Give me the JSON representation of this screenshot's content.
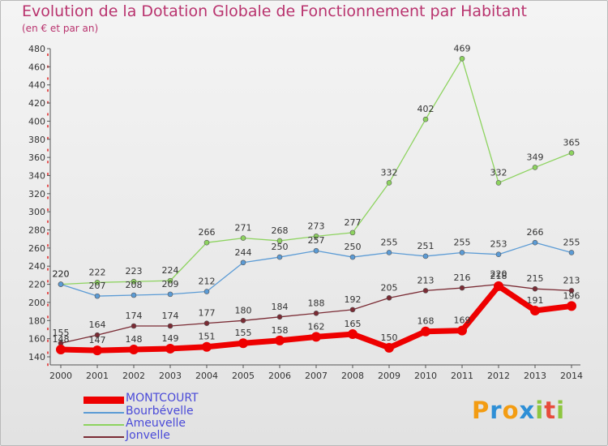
{
  "title": "Evolution de la Dotation Globale de Fonctionnement par Habitant",
  "subtitle": "(en € et par an)",
  "logo": {
    "letters": [
      "P",
      "r",
      "o",
      "x",
      "i",
      "t",
      "i"
    ],
    "colors": [
      "#f39c12",
      "#2e8fd6",
      "#f39c12",
      "#2e8fd6",
      "#8dc63f",
      "#e74c3c",
      "#8dc63f"
    ]
  },
  "chart_data": {
    "type": "line",
    "title": "Evolution de la Dotation Globale de Fonctionnement par Habitant",
    "subtitle": "(en € et par an)",
    "xlabel": "",
    "ylabel": "",
    "x": [
      "2000",
      "2001",
      "2002",
      "2003",
      "2004",
      "2005",
      "2006",
      "2007",
      "2008",
      "2009",
      "2010",
      "2011",
      "2012",
      "2013",
      "2014"
    ],
    "ylim": [
      140,
      480
    ],
    "yticks": [
      140,
      160,
      180,
      200,
      220,
      240,
      260,
      280,
      300,
      320,
      340,
      360,
      380,
      400,
      420,
      440,
      460,
      480
    ],
    "grid": false,
    "legend": "bottom-left",
    "series": [
      {
        "name": "MONTCOURT",
        "color": "#ee0000",
        "values": [
          148,
          147,
          148,
          149,
          151,
          155,
          158,
          162,
          165,
          150,
          168,
          169,
          218,
          191,
          196
        ]
      },
      {
        "name": "Bourbévelle",
        "color": "#5b9bd5",
        "values": [
          220,
          207,
          208,
          209,
          212,
          244,
          250,
          257,
          250,
          255,
          251,
          255,
          253,
          266,
          255
        ]
      },
      {
        "name": "Ameuvelle",
        "color": "#8dd35f",
        "values": [
          220,
          222,
          223,
          224,
          266,
          271,
          268,
          273,
          277,
          332,
          402,
          469,
          332,
          349,
          365
        ]
      },
      {
        "name": "Jonvelle",
        "color": "#7a2b34",
        "values": [
          155,
          164,
          174,
          174,
          177,
          180,
          184,
          188,
          192,
          205,
          213,
          216,
          220,
          215,
          213
        ]
      }
    ]
  }
}
